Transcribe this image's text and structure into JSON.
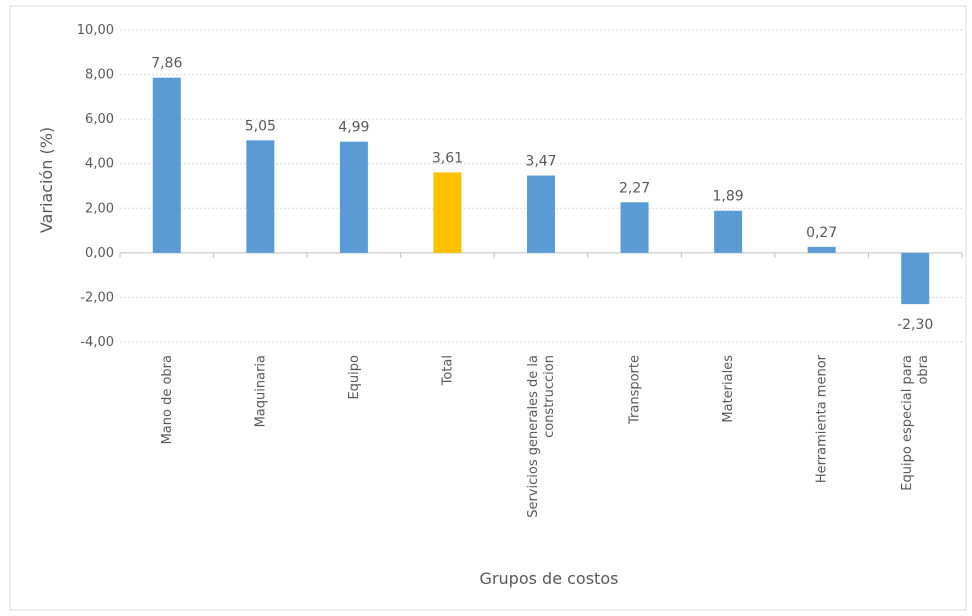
{
  "chart_data": {
    "type": "bar",
    "title": "",
    "xlabel": "Grupos de costos",
    "ylabel": "Variación (%)",
    "ylim": [
      -4,
      10
    ],
    "yticks": [
      10,
      8,
      6,
      4,
      2,
      0,
      -2,
      -4
    ],
    "ytick_labels": [
      "10,00",
      "8,00",
      "6,00",
      "4,00",
      "2,00",
      "0,00",
      "-2,00",
      "-4,00"
    ],
    "grid": true,
    "categories": [
      [
        "Mano de obra"
      ],
      [
        "Maquinaria"
      ],
      [
        "Equipo"
      ],
      [
        "Total"
      ],
      [
        "Servicios generales de la",
        "construccion"
      ],
      [
        "Transporte"
      ],
      [
        "Materiales"
      ],
      [
        "Herramienta menor"
      ],
      [
        "Equipo especial para",
        "obra"
      ]
    ],
    "values": [
      7.86,
      5.05,
      4.99,
      3.61,
      3.47,
      2.27,
      1.89,
      0.27,
      -2.3
    ],
    "value_labels": [
      "7,86",
      "5,05",
      "4,99",
      "3,61",
      "3,47",
      "2,27",
      "1,89",
      "0,27",
      "-2,30"
    ],
    "colors": [
      "#5b9bd5",
      "#5b9bd5",
      "#5b9bd5",
      "#ffc000",
      "#5b9bd5",
      "#5b9bd5",
      "#5b9bd5",
      "#5b9bd5",
      "#5b9bd5"
    ]
  }
}
